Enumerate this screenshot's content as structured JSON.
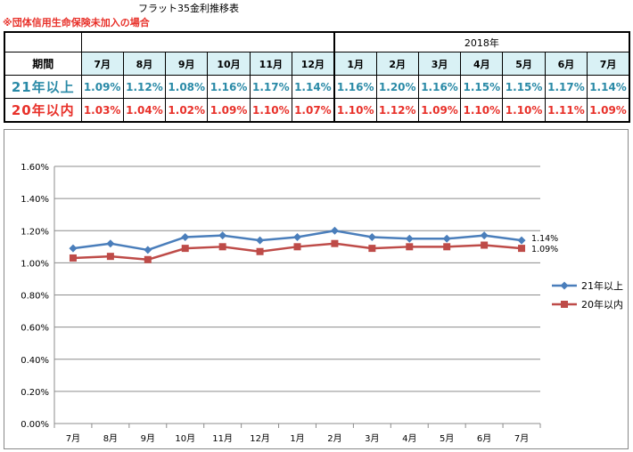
{
  "title": "フラット35金利推移表",
  "note": "※団体信用生命保険未加入の場合",
  "table": {
    "year_label": "2018年",
    "period_label": "期間",
    "months": [
      "7月",
      "8月",
      "9月",
      "10月",
      "11月",
      "12月",
      "1月",
      "2月",
      "3月",
      "4月",
      "5月",
      "6月",
      "7月"
    ],
    "rows": [
      {
        "label": "21年以上",
        "values": [
          "1.09%",
          "1.12%",
          "1.08%",
          "1.16%",
          "1.17%",
          "1.14%",
          "1.16%",
          "1.20%",
          "1.16%",
          "1.15%",
          "1.15%",
          "1.17%",
          "1.14%"
        ]
      },
      {
        "label": "20年以内",
        "values": [
          "1.03%",
          "1.04%",
          "1.02%",
          "1.09%",
          "1.10%",
          "1.07%",
          "1.10%",
          "1.12%",
          "1.09%",
          "1.10%",
          "1.10%",
          "1.11%",
          "1.09%"
        ]
      }
    ]
  },
  "chart_data": {
    "type": "line",
    "categories": [
      "7月",
      "8月",
      "9月",
      "10月",
      "11月",
      "12月",
      "1月",
      "2月",
      "3月",
      "4月",
      "5月",
      "6月",
      "7月"
    ],
    "series": [
      {
        "name": "21年以上",
        "values": [
          1.09,
          1.12,
          1.08,
          1.16,
          1.17,
          1.14,
          1.16,
          1.2,
          1.16,
          1.15,
          1.15,
          1.17,
          1.14
        ],
        "color": "#4a7ebb",
        "marker": "diamond",
        "end_label": "1.14%"
      },
      {
        "name": "20年以内",
        "values": [
          1.03,
          1.04,
          1.02,
          1.09,
          1.1,
          1.07,
          1.1,
          1.12,
          1.09,
          1.1,
          1.1,
          1.11,
          1.09
        ],
        "color": "#be4b48",
        "marker": "square",
        "end_label": "1.09%"
      }
    ],
    "ylim": [
      0,
      1.6
    ],
    "yticks": [
      "0.00%",
      "0.20%",
      "0.40%",
      "0.60%",
      "0.80%",
      "1.00%",
      "1.20%",
      "1.40%",
      "1.60%"
    ],
    "grid": true,
    "legend_position": "right"
  }
}
